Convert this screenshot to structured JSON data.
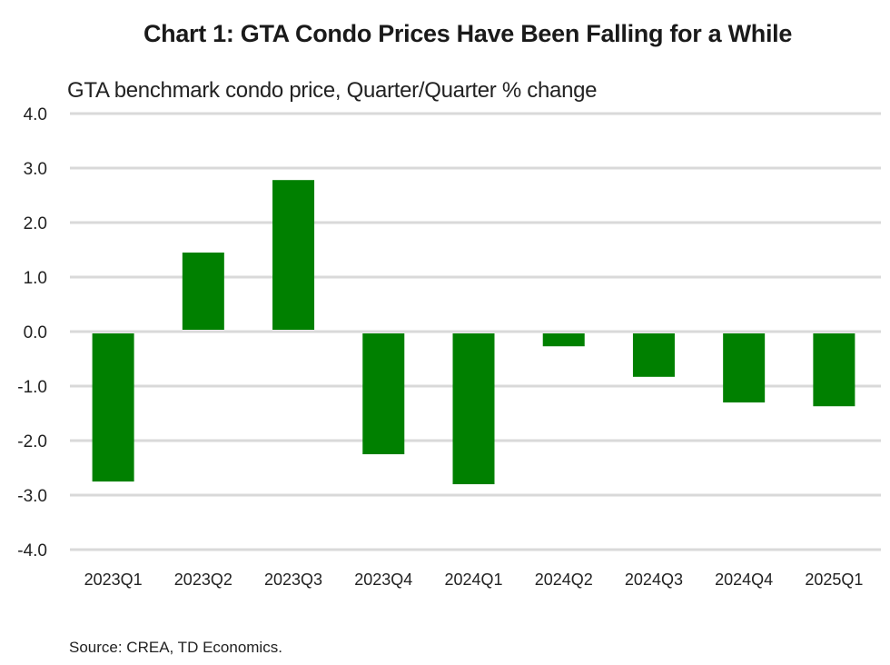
{
  "chart_data": {
    "type": "bar",
    "title": "Chart 1: GTA Condo Prices Have Been Falling for a While",
    "subtitle": "GTA benchmark condo price, Quarter/Quarter % change",
    "xlabel": "",
    "ylabel": "",
    "categories": [
      "2023Q1",
      "2023Q2",
      "2023Q3",
      "2023Q4",
      "2024Q1",
      "2024Q2",
      "2024Q3",
      "2024Q4",
      "2025Q1"
    ],
    "values": [
      -2.75,
      1.45,
      2.78,
      -2.25,
      -2.8,
      -0.27,
      -0.83,
      -1.3,
      -1.37
    ],
    "ylim": [
      -4.0,
      4.0
    ],
    "yticks": [
      "4.0",
      "3.0",
      "2.0",
      "1.0",
      "0.0",
      "-1.0",
      "-2.0",
      "-3.0",
      "-4.0"
    ],
    "ytick_values": [
      4,
      3,
      2,
      1,
      0,
      -1,
      -2,
      -3,
      -4
    ],
    "grid": true,
    "legend": "none",
    "bar_color": "#008000",
    "source": "Source: CREA, TD Economics."
  }
}
